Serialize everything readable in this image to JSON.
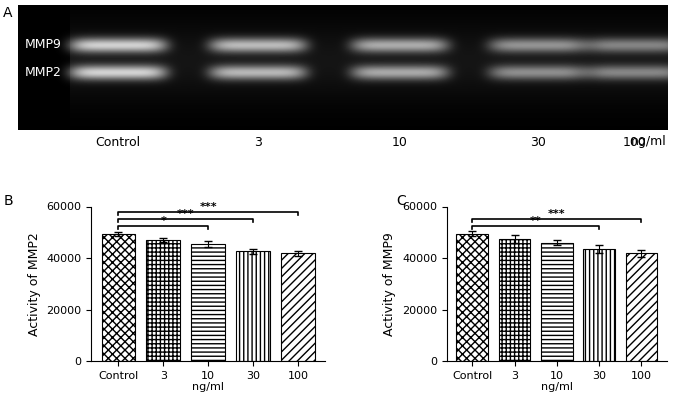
{
  "chart_data": [
    {
      "type": "gel",
      "panel": "A",
      "bands": [
        "MMP9",
        "MMP2"
      ],
      "lanes": [
        "Control",
        "3",
        "10",
        "30",
        "100"
      ],
      "unit": "ng/ml"
    },
    {
      "type": "bar",
      "panel": "B",
      "categories": [
        "Control",
        "3",
        "10",
        "30",
        "100"
      ],
      "values": [
        49500,
        47000,
        45600,
        42700,
        41800
      ],
      "errors": [
        800,
        800,
        1200,
        1000,
        1000
      ],
      "color": "#ffffff",
      "x_label": "ng/ml",
      "y_label": "Activity of MMP2",
      "ylim": [
        0,
        60000
      ],
      "yticks": [
        0,
        20000,
        40000,
        60000
      ],
      "annotations": [
        {
          "text": "*",
          "categories": [
            "Control",
            "10"
          ]
        },
        {
          "text": "***",
          "categories": [
            "Control",
            "30"
          ]
        },
        {
          "text": "***",
          "categories": [
            "Control",
            "100"
          ]
        }
      ]
    },
    {
      "type": "bar",
      "panel": "C",
      "categories": [
        "Control",
        "3",
        "10",
        "30",
        "100"
      ],
      "values": [
        49500,
        47500,
        46000,
        43500,
        41800
      ],
      "errors": [
        1000,
        1500,
        1000,
        1500,
        1500
      ],
      "color": "#ffffff",
      "x_label": "ng/ml",
      "y_label": "Activity of MMP9",
      "ylim": [
        0,
        60000
      ],
      "yticks": [
        0,
        20000,
        40000,
        60000
      ],
      "annotations": [
        {
          "text": "**",
          "categories": [
            "Control",
            "30"
          ]
        },
        {
          "text": "***",
          "categories": [
            "Control",
            "100"
          ]
        }
      ]
    }
  ]
}
